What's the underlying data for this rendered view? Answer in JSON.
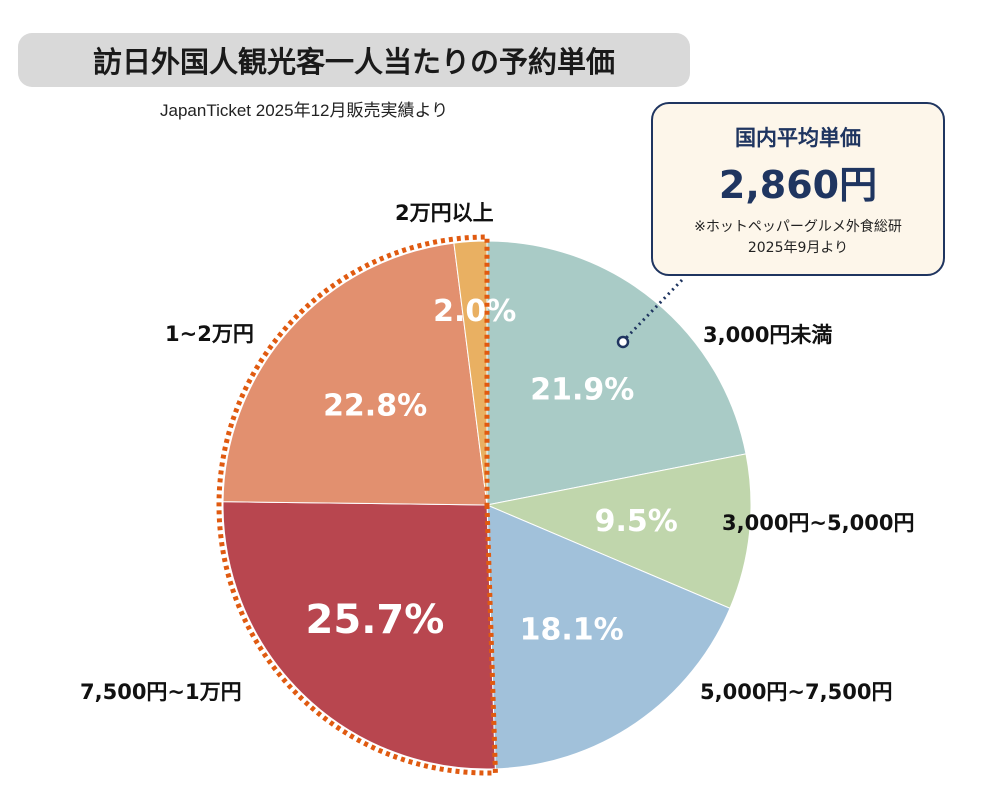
{
  "title": "訪日外国人観光客一人当たりの予約単価",
  "subtitle": "JapanTicket 2025年12月販売実績より",
  "callout": {
    "heading": "国内平均単価",
    "value": "2,860円",
    "note_line1": "※ホットペッパーグルメ外食総研",
    "note_line2": "2025年9月より"
  },
  "chart_data": {
    "type": "pie",
    "title": "訪日外国人観光客一人当たりの予約単価",
    "start": "top",
    "direction": "clockwise",
    "slices": [
      {
        "label": "3,000円未満",
        "value": 21.9,
        "value_label": "21.9%",
        "color": "#a9cbc6"
      },
      {
        "label": "3,000円~5,000円",
        "value": 9.5,
        "value_label": "9.5%",
        "color": "#c0d6ac"
      },
      {
        "label": "5,000円~7,500円",
        "value": 18.1,
        "value_label": "18.1%",
        "color": "#a1c1da"
      },
      {
        "label": "7,500円~1万円",
        "value": 25.7,
        "value_label": "25.7%",
        "color": "#b8464f"
      },
      {
        "label": "1~2万円",
        "value": 22.8,
        "value_label": "22.8%",
        "color": "#e2906f"
      },
      {
        "label": "2万円以上",
        "value": 2.0,
        "value_label": "2.0%",
        "color": "#e9b062"
      }
    ],
    "highlight": {
      "slices": [
        "7,500円~1万円",
        "1~2万円",
        "2万円以上"
      ],
      "style": "dotted outline",
      "color": "#e05a10"
    }
  }
}
